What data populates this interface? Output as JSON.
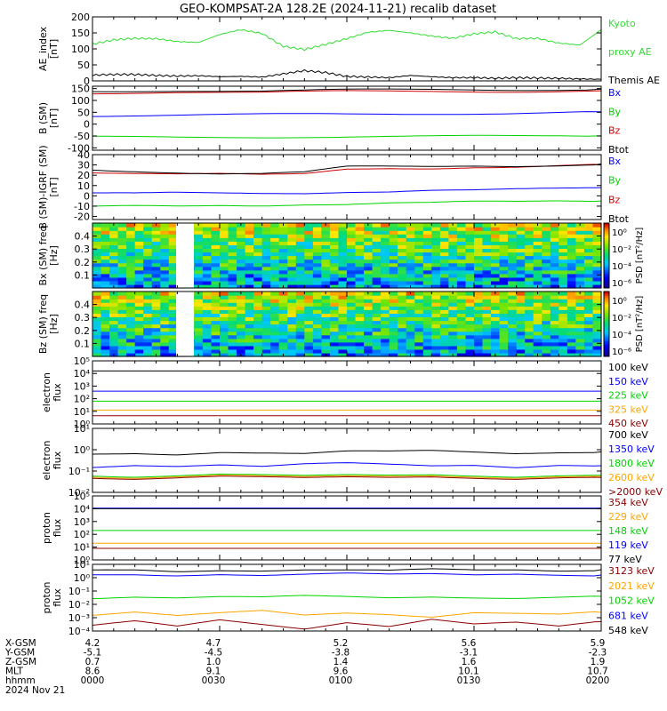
{
  "title": "GEO-KOMPSAT-2A 128.2E (2024-11-21) recalib dataset",
  "colors": {
    "black": "#000000",
    "blue": "#0000ff",
    "green": "#00d400",
    "red": "#cc0000",
    "orange": "#ffa500",
    "darkred": "#8b0000",
    "ae_green": "#33dd33"
  },
  "footer": {
    "rows": [
      {
        "label": "X-GSM",
        "values": [
          "4.2",
          "4.7",
          "5.2",
          "5.6",
          "5.9"
        ]
      },
      {
        "label": "Y-GSM",
        "values": [
          "-5.1",
          "-4.5",
          "-3.8",
          "-3.1",
          "-2.3"
        ]
      },
      {
        "label": "Z-GSM",
        "values": [
          "0.7",
          "1.0",
          "1.4",
          "1.6",
          "1.9"
        ]
      },
      {
        "label": "MLT",
        "values": [
          "8.6",
          "9.1",
          "9.6",
          "10.1",
          "10.7"
        ]
      },
      {
        "label": "hhmm",
        "values": [
          "0000",
          "0030",
          "0100",
          "0130",
          "0200"
        ]
      }
    ],
    "date": "2024 Nov 21"
  },
  "chart_data": [
    {
      "id": "ae",
      "type": "line",
      "ylabel": "AE_index [nT]",
      "ylim": [
        0,
        200
      ],
      "yticks": [
        {
          "v": 0,
          "t": "0"
        },
        {
          "v": 50,
          "t": "50"
        },
        {
          "v": 100,
          "t": "100"
        },
        {
          "v": 150,
          "t": "150"
        },
        {
          "v": 200,
          "t": "200"
        }
      ],
      "x": [
        0,
        5,
        10,
        15,
        20,
        25,
        30,
        35,
        40,
        45,
        50,
        55,
        60,
        65,
        70,
        75,
        80,
        85,
        90,
        95,
        100,
        105,
        110,
        115,
        120
      ],
      "series": [
        {
          "name": "Kyoto proxy AE",
          "color": "ae_green",
          "values": [
            115,
            128,
            133,
            132,
            123,
            120,
            145,
            160,
            148,
            108,
            98,
            114,
            132,
            152,
            158,
            150,
            140,
            133,
            147,
            153,
            132,
            133,
            118,
            112,
            160
          ]
        },
        {
          "name": "Themis AE",
          "color": "black",
          "values": [
            18,
            20,
            20,
            17,
            15,
            16,
            13,
            14,
            12,
            22,
            32,
            26,
            14,
            12,
            10,
            17,
            13,
            10,
            10,
            8,
            10,
            9,
            8,
            6,
            5
          ]
        }
      ],
      "legend": [
        {
          "t": "Kyoto",
          "color": "ae_green"
        },
        {
          "t": "proxy AE",
          "color": "ae_green"
        },
        {
          "t": "Themis AE",
          "color": "black"
        }
      ]
    },
    {
      "id": "bsm",
      "type": "line",
      "ylabel": "B (SM) [nT]",
      "ylim": [
        -110,
        160
      ],
      "yticks": [
        {
          "v": -100,
          "t": "-100"
        },
        {
          "v": -50,
          "t": "-50"
        },
        {
          "v": 0,
          "t": "0"
        },
        {
          "v": 50,
          "t": "50"
        },
        {
          "v": 100,
          "t": "100"
        },
        {
          "v": 150,
          "t": "150"
        }
      ],
      "x": [
        0,
        20,
        40,
        60,
        80,
        100,
        120
      ],
      "series": [
        {
          "name": "Bx",
          "color": "blue",
          "values": [
            36,
            38,
            40,
            42,
            44,
            47,
            52
          ]
        },
        {
          "name": "By",
          "color": "green",
          "values": [
            -55,
            -55,
            -54,
            -53,
            -52,
            -51,
            -49
          ]
        },
        {
          "name": "Bz",
          "color": "red",
          "values": [
            131,
            136,
            133,
            138,
            139,
            138,
            141
          ]
        },
        {
          "name": "Btot",
          "color": "black",
          "values": [
            138,
            142,
            140,
            144,
            145,
            145,
            148
          ]
        }
      ],
      "legend": [
        {
          "t": "Bx",
          "color": "blue"
        },
        {
          "t": "By",
          "color": "green"
        },
        {
          "t": "Bz",
          "color": "red"
        },
        {
          "t": "Btot",
          "color": "black"
        }
      ]
    },
    {
      "id": "bigrf",
      "type": "line",
      "ylabel": "B (SM)-IGRF (SM) [nT]",
      "ylim": [
        -23,
        40
      ],
      "yticks": [
        {
          "v": -20,
          "t": "-20"
        },
        {
          "v": -10,
          "t": "-10"
        },
        {
          "v": 0,
          "t": "0"
        },
        {
          "v": 10,
          "t": "10"
        },
        {
          "v": 20,
          "t": "20"
        },
        {
          "v": 30,
          "t": "30"
        },
        {
          "v": 40,
          "t": "40"
        }
      ],
      "x": [
        0,
        10,
        20,
        30,
        40,
        50,
        60,
        70,
        80,
        90,
        100,
        110,
        120
      ],
      "series": [
        {
          "name": "Bx",
          "color": "blue",
          "values": [
            2,
            2,
            3,
            3,
            3,
            3,
            4,
            4,
            5,
            5,
            6,
            7,
            8
          ]
        },
        {
          "name": "By",
          "color": "green",
          "values": [
            -11,
            -10,
            -10,
            -9,
            -9,
            -8,
            -8,
            -7,
            -7,
            -6,
            -6,
            -5,
            -5
          ]
        },
        {
          "name": "Bz",
          "color": "red",
          "values": [
            23,
            22,
            21,
            21,
            20,
            21,
            26,
            27,
            27,
            28,
            28,
            29,
            30
          ]
        },
        {
          "name": "Btot",
          "color": "black",
          "values": [
            25,
            24,
            23,
            22,
            22,
            23,
            28,
            28,
            28,
            29,
            29,
            30,
            31
          ]
        }
      ],
      "legend": [
        {
          "t": "Bx",
          "color": "blue"
        },
        {
          "t": "By",
          "color": "green"
        },
        {
          "t": "Bz",
          "color": "red"
        },
        {
          "t": "Btot",
          "color": "black"
        }
      ]
    },
    {
      "id": "bxspec",
      "type": "heatmap",
      "ylabel": "Bx (SM) freq [Hz]",
      "ylim": [
        0,
        0.5
      ],
      "yticks": [
        {
          "v": 0.1,
          "t": "0.1"
        },
        {
          "v": 0.2,
          "t": "0.2"
        },
        {
          "v": 0.3,
          "t": "0.3"
        },
        {
          "v": 0.4,
          "t": "0.4"
        }
      ],
      "gap": [
        21,
        26
      ],
      "seed": 7,
      "colorbar": {
        "label": "PSD [nT²/Hz]",
        "ticks": [
          "10⁰",
          "10⁻²",
          "10⁻⁴",
          "10⁻⁶"
        ]
      }
    },
    {
      "id": "bzspec",
      "type": "heatmap",
      "ylabel": "Bz (SM) freq [Hz]",
      "ylim": [
        0,
        0.5
      ],
      "yticks": [
        {
          "v": 0.1,
          "t": "0.1"
        },
        {
          "v": 0.2,
          "t": "0.2"
        },
        {
          "v": 0.3,
          "t": "0.3"
        },
        {
          "v": 0.4,
          "t": "0.4"
        }
      ],
      "gap": [
        21,
        26
      ],
      "seed": 19,
      "colorbar": {
        "label": "PSD [nT²/Hz]",
        "ticks": [
          "10⁰",
          "10⁻²",
          "10⁻⁴",
          "10⁻⁶"
        ]
      }
    },
    {
      "id": "elec1",
      "type": "line",
      "ylabel": "electron flux",
      "log": true,
      "ylim": [
        0,
        5
      ],
      "yticks": [
        {
          "v": 0,
          "t": "10⁰"
        },
        {
          "v": 1,
          "t": "10¹"
        },
        {
          "v": 2,
          "t": "10²"
        },
        {
          "v": 3,
          "t": "10³"
        },
        {
          "v": 4,
          "t": "10⁴"
        },
        {
          "v": 5,
          "t": "10⁵"
        }
      ],
      "x": [
        0,
        120
      ],
      "series": [
        {
          "name": "100 keV",
          "color": "black",
          "values": [
            4.2,
            4.2
          ]
        },
        {
          "name": "150 keV",
          "color": "blue",
          "values": [
            2.6,
            2.6
          ]
        },
        {
          "name": "225 keV",
          "color": "green",
          "values": [
            1.8,
            1.8
          ]
        },
        {
          "name": "325 keV",
          "color": "orange",
          "values": [
            1.1,
            1.1
          ]
        },
        {
          "name": "450 keV",
          "color": "darkred",
          "values": [
            0.65,
            0.65
          ]
        }
      ],
      "legend": [
        {
          "t": "100 keV",
          "color": "black"
        },
        {
          "t": "150 keV",
          "color": "blue"
        },
        {
          "t": "225 keV",
          "color": "green"
        },
        {
          "t": "325 keV",
          "color": "orange"
        },
        {
          "t": "450 keV",
          "color": "darkred"
        }
      ]
    },
    {
      "id": "elec2",
      "type": "line",
      "ylabel": "electron flux",
      "log": true,
      "ylim": [
        -2,
        1
      ],
      "yticks": [
        {
          "v": -2,
          "t": "10⁻²"
        },
        {
          "v": -1,
          "t": "10⁻¹"
        },
        {
          "v": 0,
          "t": "10⁰"
        },
        {
          "v": 1,
          "t": "10¹"
        }
      ],
      "x": [
        0,
        10,
        20,
        30,
        40,
        50,
        60,
        70,
        80,
        90,
        100,
        110,
        120
      ],
      "series": [
        {
          "name": "700 keV",
          "color": "black",
          "values": [
            -0.2,
            -0.15,
            -0.2,
            -0.1,
            -0.15,
            -0.2,
            -0.1,
            -0.1,
            -0.05,
            -0.1,
            -0.15,
            -0.1,
            -0.1
          ]
        },
        {
          "name": "1350 keV",
          "color": "blue",
          "values": [
            -0.8,
            -0.7,
            -0.75,
            -0.7,
            -0.8,
            -0.7,
            -0.65,
            -0.7,
            -0.75,
            -0.7,
            -0.8,
            -0.7,
            -0.75
          ]
        },
        {
          "name": "1800 keV",
          "color": "green",
          "values": [
            -1.2,
            -1.25,
            -1.2,
            -1.15,
            -1.2,
            -1.25,
            -1.2,
            -1.2,
            -1.15,
            -1.2,
            -1.25,
            -1.2,
            -1.2
          ]
        },
        {
          "name": "2600 keV",
          "color": "orange",
          "values": [
            -1.25,
            -1.3,
            -1.25,
            -1.2,
            -1.25,
            -1.3,
            -1.25,
            -1.25,
            -1.2,
            -1.25,
            -1.3,
            -1.25,
            -1.25
          ]
        },
        {
          "name": ">2000 keV",
          "color": "darkred",
          "values": [
            -1.3,
            -1.35,
            -1.3,
            -1.25,
            -1.3,
            -1.35,
            -1.3,
            -1.3,
            -1.25,
            -1.3,
            -1.35,
            -1.3,
            -1.3
          ]
        }
      ],
      "legend": [
        {
          "t": "700 keV",
          "color": "black"
        },
        {
          "t": "1350 keV",
          "color": "blue"
        },
        {
          "t": "1800 keV",
          "color": "green"
        },
        {
          "t": "2600 keV",
          "color": "orange"
        },
        {
          "t": ">2000 keV",
          "color": "darkred"
        }
      ]
    },
    {
      "id": "prot1",
      "type": "line",
      "ylabel": "proton flux",
      "log": true,
      "ylim": [
        0,
        5
      ],
      "yticks": [
        {
          "v": 0,
          "t": "10⁰"
        },
        {
          "v": 1,
          "t": "10¹"
        },
        {
          "v": 2,
          "t": "10²"
        },
        {
          "v": 3,
          "t": "10³"
        },
        {
          "v": 4,
          "t": "10⁴"
        },
        {
          "v": 5,
          "t": "10⁵"
        }
      ],
      "x": [
        0,
        120
      ],
      "series": [
        {
          "name": "354 keV",
          "color": "darkred",
          "values": [
            0.9,
            0.9
          ]
        },
        {
          "name": "229 keV",
          "color": "orange",
          "values": [
            1.3,
            1.3
          ]
        },
        {
          "name": "148 keV",
          "color": "green",
          "values": [
            2.3,
            2.3
          ]
        },
        {
          "name": "119 keV",
          "color": "blue",
          "values": [
            4.05,
            4.05
          ]
        },
        {
          "name": "77 keV",
          "color": "black",
          "values": [
            4.0,
            4.0
          ]
        }
      ],
      "legend": [
        {
          "t": "354 keV",
          "color": "darkred"
        },
        {
          "t": "229 keV",
          "color": "orange"
        },
        {
          "t": "148 keV",
          "color": "green"
        },
        {
          "t": "119 keV",
          "color": "blue"
        },
        {
          "t": "77 keV",
          "color": "black"
        }
      ]
    },
    {
      "id": "prot2",
      "type": "line",
      "ylabel": "proton flux",
      "log": true,
      "ylim": [
        -4,
        1
      ],
      "yticks": [
        {
          "v": -4,
          "t": "10⁻⁴"
        },
        {
          "v": -3,
          "t": "10⁻³"
        },
        {
          "v": -2,
          "t": "10⁻²"
        },
        {
          "v": -1,
          "t": "10⁻¹"
        },
        {
          "v": 0,
          "t": "10⁰"
        },
        {
          "v": 1,
          "t": "10¹"
        }
      ],
      "x": [
        0,
        10,
        20,
        30,
        40,
        50,
        60,
        70,
        80,
        90,
        100,
        110,
        120
      ],
      "series": [
        {
          "name": "3123 keV",
          "color": "darkred",
          "values": [
            -3.6,
            -3.3,
            -3.7,
            -3.2,
            -3.5,
            -3.8,
            -3.3,
            -3.6,
            -3.1,
            -3.5,
            -3.4,
            -3.7,
            -3.3
          ]
        },
        {
          "name": "2021 keV",
          "color": "orange",
          "values": [
            -2.8,
            -2.6,
            -2.9,
            -2.7,
            -2.5,
            -2.8,
            -2.6,
            -2.7,
            -2.9,
            -2.6,
            -2.7,
            -2.8,
            -2.6
          ]
        },
        {
          "name": "1052 keV",
          "color": "green",
          "values": [
            -1.5,
            -1.4,
            -1.5,
            -1.45,
            -1.5,
            -1.4,
            -1.45,
            -1.5,
            -1.4,
            -1.45,
            -1.5,
            -1.45,
            -1.4
          ]
        },
        {
          "name": "681 keV",
          "color": "blue",
          "values": [
            0.2,
            0.25,
            0.2,
            0.3,
            0.2,
            0.25,
            0.3,
            0.2,
            0.25,
            0.2,
            0.3,
            0.25,
            0.2
          ]
        },
        {
          "name": "548 keV",
          "color": "black",
          "values": [
            0.55,
            0.6,
            0.5,
            0.6,
            0.55,
            0.6,
            0.55,
            0.5,
            0.6,
            0.55,
            0.6,
            0.55,
            0.6
          ]
        }
      ],
      "legend": [
        {
          "t": "3123 keV",
          "color": "darkred"
        },
        {
          "t": "2021 keV",
          "color": "orange"
        },
        {
          "t": "1052 keV",
          "color": "green"
        },
        {
          "t": "681 keV",
          "color": "blue"
        },
        {
          "t": "548 keV",
          "color": "black"
        }
      ]
    }
  ]
}
